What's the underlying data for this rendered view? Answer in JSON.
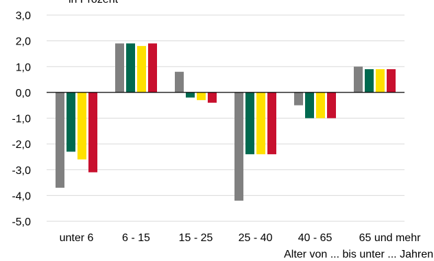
{
  "chart_data": {
    "type": "bar",
    "title": "",
    "unit_label": "in Prozent",
    "xlabel": "Alter von ... bis unter ... Jahren",
    "ylabel": "",
    "ylim": [
      -5.0,
      3.0
    ],
    "yticks": [
      "3,0",
      "2,0",
      "1,0",
      "0,0",
      "-1,0",
      "-2,0",
      "-3,0",
      "-4,0",
      "-5,0"
    ],
    "categories": [
      "unter 6",
      "6 - 15",
      "15 - 25",
      "25 - 40",
      "40 - 65",
      "65 und mehr"
    ],
    "grid": true,
    "legend": "none",
    "series": [
      {
        "color": "#808080",
        "values": [
          -3.7,
          1.9,
          0.8,
          -4.2,
          -0.5,
          1.0
        ]
      },
      {
        "color": "#00694f",
        "values": [
          -2.3,
          1.9,
          -0.2,
          -2.4,
          -1.0,
          0.9
        ]
      },
      {
        "color": "#ffe000",
        "values": [
          -2.6,
          1.8,
          -0.3,
          -2.4,
          -1.0,
          0.9
        ]
      },
      {
        "color": "#c8102e",
        "values": [
          -3.1,
          1.9,
          -0.4,
          -2.4,
          -1.0,
          0.9
        ]
      }
    ]
  }
}
